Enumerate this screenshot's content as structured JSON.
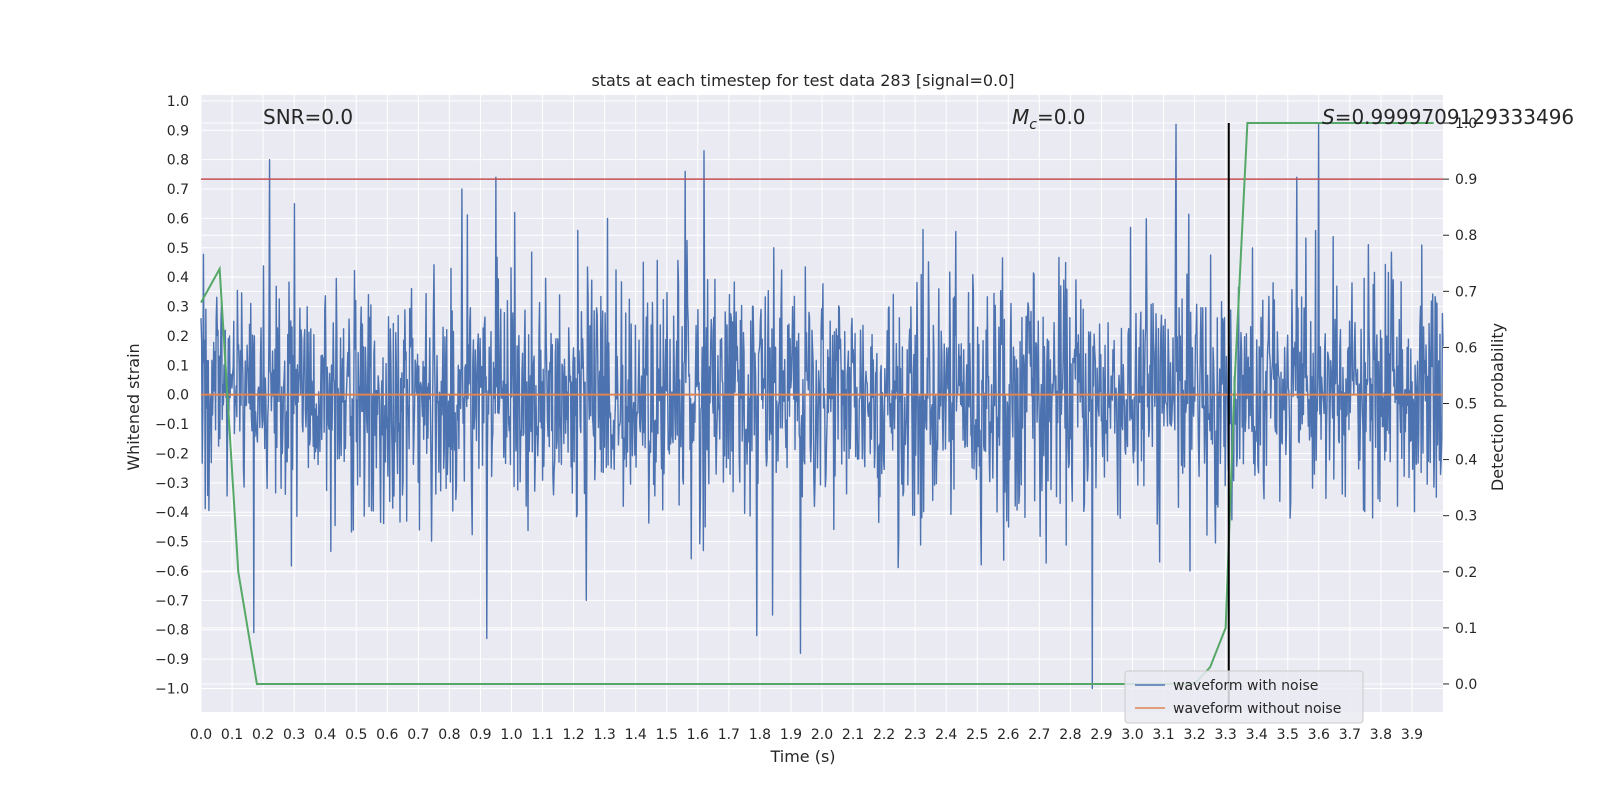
{
  "chart_data": {
    "type": "line",
    "title": "stats at each timestep for test data 283 [signal=0.0]",
    "xlabel": "Time (s)",
    "ylabel_left": "Whitened strain",
    "ylabel_right": "Detection probability",
    "xlim": [
      0.0,
      4.0
    ],
    "ylim_left": [
      -1.08,
      1.02
    ],
    "ylim_right": [
      -0.05,
      1.05
    ],
    "x_ticks": [
      "0.0",
      "0.1",
      "0.2",
      "0.3",
      "0.4",
      "0.5",
      "0.6",
      "0.7",
      "0.8",
      "0.9",
      "1.0",
      "1.1",
      "1.2",
      "1.3",
      "1.4",
      "1.5",
      "1.6",
      "1.7",
      "1.8",
      "1.9",
      "2.0",
      "2.1",
      "2.2",
      "2.3",
      "2.4",
      "2.5",
      "2.6",
      "2.7",
      "2.8",
      "2.9",
      "3.0",
      "3.1",
      "3.2",
      "3.3",
      "3.4",
      "3.5",
      "3.6",
      "3.7",
      "3.8",
      "3.9"
    ],
    "y_ticks_left": [
      "1.0",
      "0.9",
      "0.8",
      "0.7",
      "0.6",
      "0.5",
      "0.4",
      "0.3",
      "0.2",
      "0.1",
      "0.0",
      "−0.1",
      "−0.2",
      "−0.3",
      "−0.4",
      "−0.5",
      "−0.6",
      "−0.7",
      "−0.8",
      "−0.9",
      "−1.0"
    ],
    "y_ticks_right": [
      "1.0",
      "0.9",
      "0.8",
      "0.7",
      "0.6",
      "0.5",
      "0.4",
      "0.3",
      "0.2",
      "0.1",
      "0.0"
    ],
    "grid": true,
    "legend_position": "lower-right",
    "annotations": {
      "snr": "SNR=0.0",
      "mc_symbol": "M",
      "mc_sub": "c",
      "mc_value": "=0.0",
      "s_symbol": "S",
      "s_value": "=0.9999709129333496"
    },
    "colors": {
      "background": "#eaeaf2",
      "grid": "#ffffff",
      "noise": "#4c72b0",
      "clean": "#dd8452",
      "probability": "#55a868",
      "threshold": "#c44e52",
      "marker": "#000000"
    },
    "series": [
      {
        "name": "waveform with noise",
        "axis": "left",
        "description_peaks": {
          "noise_std": 0.2,
          "spikes": [
            [
              0.22,
              0.8
            ],
            [
              0.3,
              0.65
            ],
            [
              0.84,
              0.7
            ],
            [
              0.95,
              0.74
            ],
            [
              1.01,
              0.62
            ],
            [
              1.31,
              0.6
            ],
            [
              1.56,
              0.76
            ],
            [
              1.62,
              0.83
            ],
            [
              3.14,
              0.92
            ],
            [
              3.6,
              0.92
            ],
            [
              3.53,
              0.74
            ],
            [
              0.17,
              -0.81
            ],
            [
              0.92,
              -0.83
            ],
            [
              1.79,
              -0.82
            ],
            [
              1.93,
              -0.88
            ],
            [
              2.87,
              -1.0
            ],
            [
              1.84,
              -0.75
            ],
            [
              1.24,
              -0.7
            ]
          ]
        }
      },
      {
        "name": "waveform without noise",
        "axis": "left",
        "x": [
          0.0,
          4.0
        ],
        "y": [
          0.0,
          0.0
        ]
      },
      {
        "name": "detection probability",
        "axis": "right",
        "x": [
          0.0,
          0.06,
          0.12,
          0.18,
          0.21,
          0.25,
          0.3,
          2.8,
          3.2,
          3.25,
          3.3,
          3.33,
          3.37,
          3.97
        ],
        "y": [
          0.68,
          0.74,
          0.2,
          0.0,
          0.0,
          0.0,
          0.0,
          0.0,
          0.0,
          0.03,
          0.1,
          0.55,
          1.0,
          1.0
        ]
      }
    ],
    "threshold_right": 0.9,
    "marker_time": 3.31,
    "legend": [
      "waveform with noise",
      "waveform without noise"
    ]
  }
}
